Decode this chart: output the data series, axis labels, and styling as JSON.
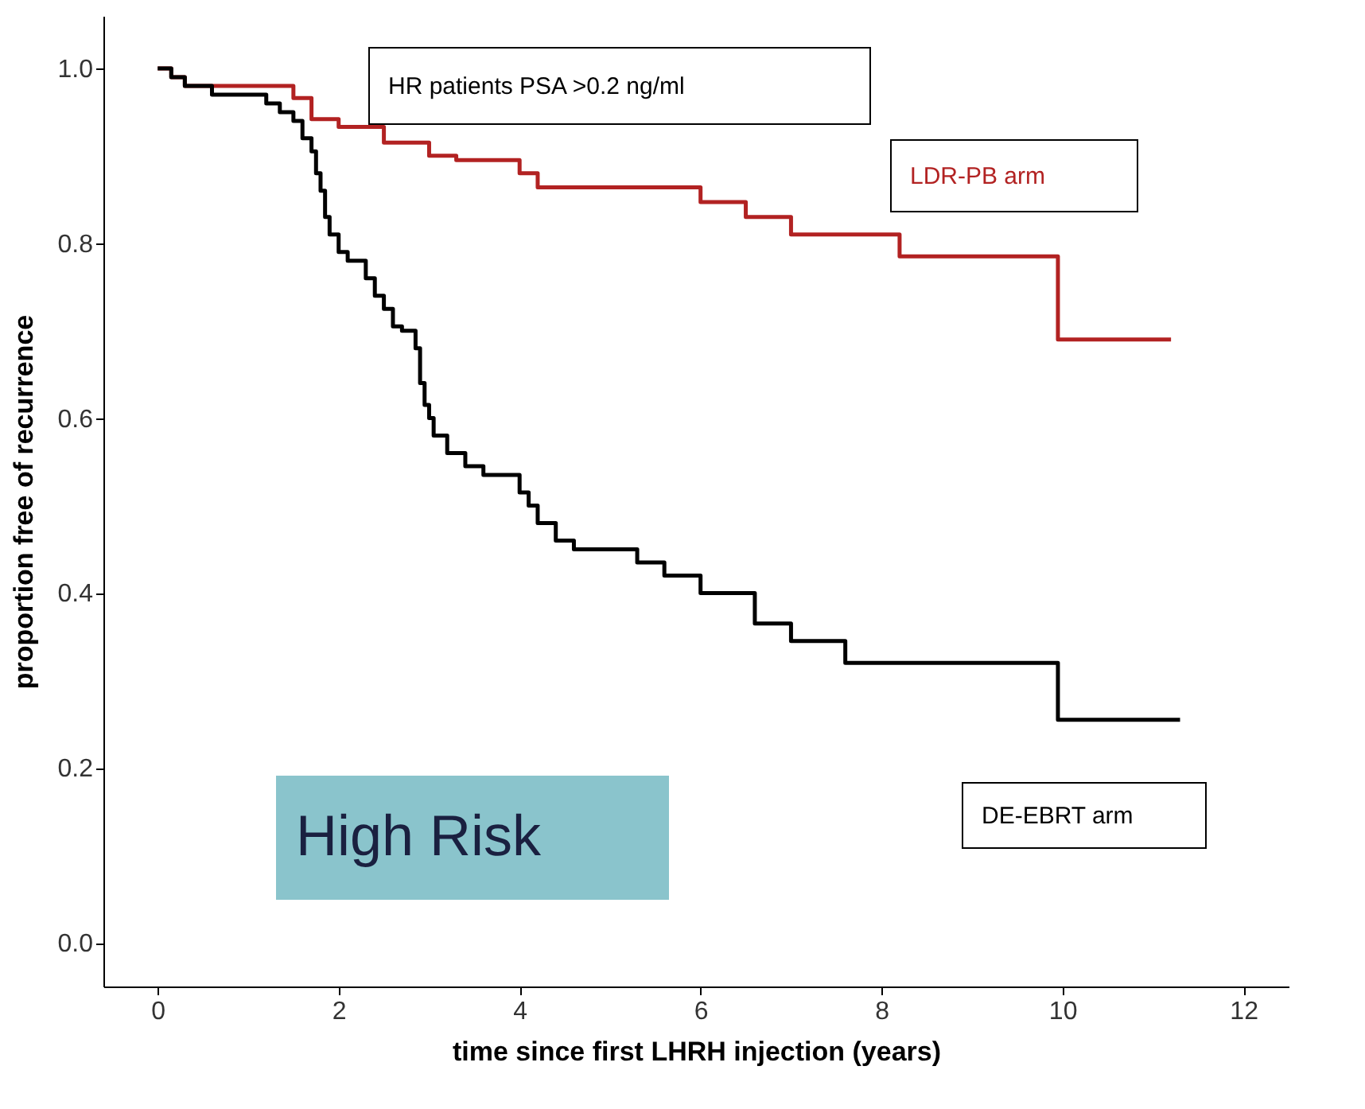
{
  "chart_data": {
    "type": "step",
    "xlabel": "time since first LHRH injection (years)",
    "ylabel": "proportion free of recurrence",
    "xlim": [
      -0.6,
      12.5
    ],
    "ylim": [
      -0.05,
      1.06
    ],
    "xticks": [
      0,
      2,
      4,
      6,
      8,
      10,
      12
    ],
    "yticks": [
      {
        "value": 0,
        "label": "0.0"
      },
      {
        "value": 0.2,
        "label": "0.2"
      },
      {
        "value": 0.4,
        "label": "0.4"
      },
      {
        "value": 0.6,
        "label": "0.6"
      },
      {
        "value": 0.8,
        "label": "0.8"
      },
      {
        "value": 1,
        "label": "1.0"
      }
    ],
    "grid": false,
    "marker": "none",
    "line_style": "solid",
    "annotations": [
      "HR patients PSA >0.2 ng/ml",
      "High Risk"
    ],
    "series": [
      {
        "name": "LDR-PB arm",
        "color": "#b22222",
        "x": [
          0,
          0.15,
          0.3,
          1.5,
          1.7,
          2.0,
          2.5,
          3.0,
          3.3,
          4.0,
          4.2,
          6.0,
          6.5,
          7.0,
          8.2,
          9.95,
          11.2
        ],
        "values": [
          1.0,
          0.99,
          0.98,
          0.966,
          0.942,
          0.933,
          0.915,
          0.9,
          0.895,
          0.88,
          0.864,
          0.847,
          0.83,
          0.81,
          0.785,
          0.69,
          0.69
        ]
      },
      {
        "name": "DE-EBRT arm",
        "color": "#000000",
        "x": [
          0,
          0.15,
          0.3,
          0.6,
          1.2,
          1.35,
          1.5,
          1.6,
          1.7,
          1.75,
          1.8,
          1.85,
          1.9,
          2.0,
          2.1,
          2.3,
          2.4,
          2.5,
          2.6,
          2.7,
          2.85,
          2.9,
          2.95,
          3.0,
          3.05,
          3.2,
          3.4,
          3.6,
          4.0,
          4.1,
          4.2,
          4.4,
          4.6,
          5.3,
          5.6,
          6.0,
          6.6,
          7.0,
          7.6,
          9.95,
          11.3
        ],
        "values": [
          1.0,
          0.99,
          0.98,
          0.97,
          0.96,
          0.95,
          0.94,
          0.92,
          0.905,
          0.88,
          0.86,
          0.83,
          0.81,
          0.79,
          0.78,
          0.76,
          0.74,
          0.725,
          0.705,
          0.7,
          0.68,
          0.64,
          0.615,
          0.6,
          0.58,
          0.56,
          0.545,
          0.535,
          0.515,
          0.5,
          0.48,
          0.46,
          0.45,
          0.435,
          0.42,
          0.4,
          0.365,
          0.345,
          0.32,
          0.255,
          0.255
        ]
      }
    ]
  }
}
